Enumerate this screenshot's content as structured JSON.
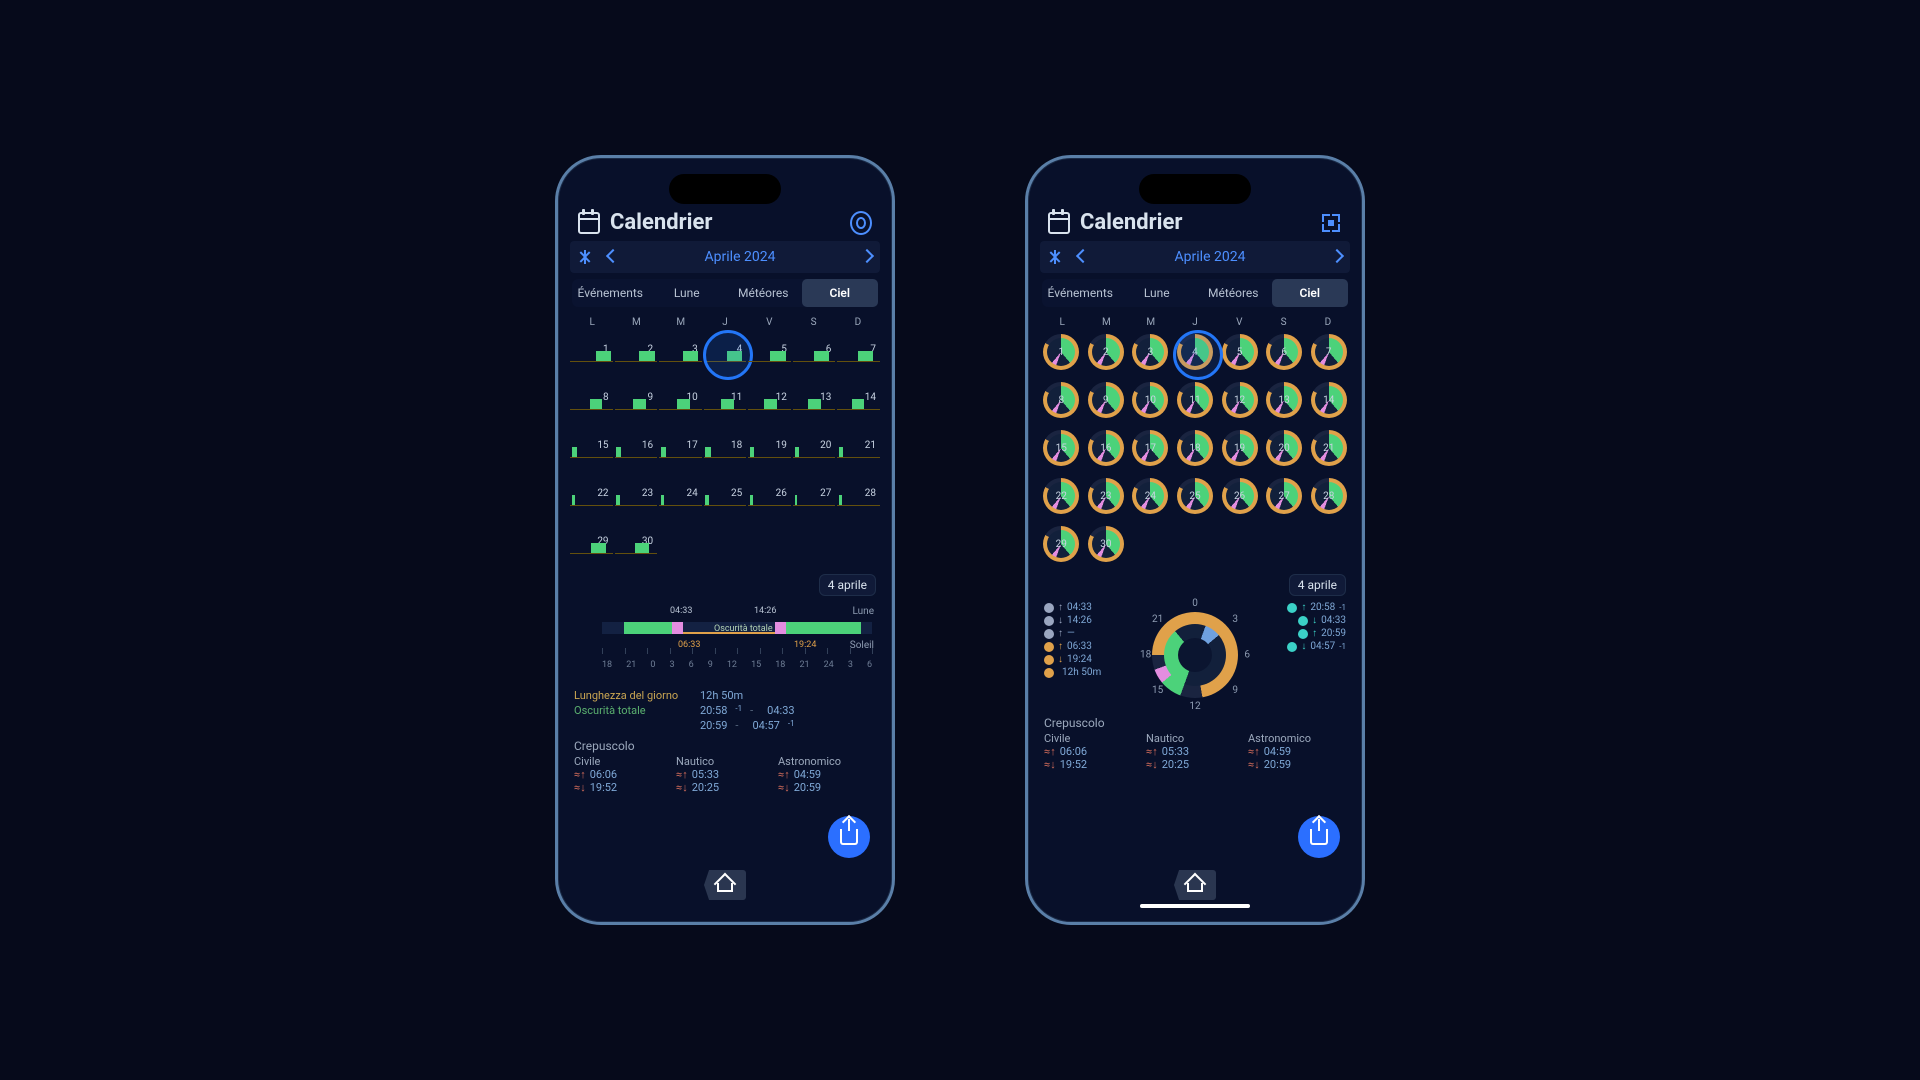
{
  "colors": {
    "bg": "#060a1b",
    "phone_border": "#5a7fa8",
    "accent_blue": "#2b6fff",
    "orange": "#e0a14a",
    "green": "#4cd27a",
    "pink": "#e38de0",
    "cyan": "#3bd1c7",
    "selected_ring": "#2376f7",
    "text": "#d9e3ee",
    "muted": "#7a8aa0"
  },
  "header": {
    "title": "Calendrier"
  },
  "month": {
    "label": "Aprile 2024"
  },
  "tabs": [
    "Événements",
    "Lune",
    "Météores",
    "Ciel"
  ],
  "tabs_active_index": 3,
  "weekdays": [
    "L",
    "M",
    "M",
    "J",
    "V",
    "S",
    "D"
  ],
  "days": [
    1,
    2,
    3,
    4,
    5,
    6,
    7,
    8,
    9,
    10,
    11,
    12,
    13,
    14,
    15,
    16,
    17,
    18,
    19,
    20,
    21,
    22,
    23,
    24,
    25,
    26,
    27,
    28,
    29,
    30
  ],
  "selected_day": 4,
  "timeline_cells": {
    "comment": "green bar left% and width% shrinking through the month",
    "bars": [
      [
        60,
        36
      ],
      [
        58,
        36
      ],
      [
        56,
        36
      ],
      [
        54,
        36
      ],
      [
        52,
        36
      ],
      [
        50,
        36
      ],
      [
        48,
        36
      ],
      [
        46,
        30
      ],
      [
        44,
        30
      ],
      [
        42,
        30
      ],
      [
        40,
        30
      ],
      [
        38,
        30
      ],
      [
        36,
        30
      ],
      [
        34,
        28
      ],
      [
        4,
        12
      ],
      [
        4,
        12
      ],
      [
        4,
        12
      ],
      [
        4,
        12
      ],
      [
        4,
        10
      ],
      [
        4,
        10
      ],
      [
        4,
        10
      ],
      [
        4,
        8
      ],
      [
        4,
        8
      ],
      [
        4,
        8
      ],
      [
        4,
        8
      ],
      [
        4,
        6
      ],
      [
        4,
        6
      ],
      [
        4,
        6
      ],
      [
        50,
        34
      ],
      [
        48,
        34
      ]
    ],
    "bar_color": "#4cd27a",
    "baseline_color": "#63500d"
  },
  "detail_date": "4 aprile",
  "left_detail": {
    "moon_label": "Lune",
    "sun_label": "Soleil",
    "moon_rise": "04:33",
    "moon_set": "14:26",
    "sun_rise": "06:33",
    "sun_set": "19:24",
    "darkness_tag": "Oscurità totale",
    "axis_ticks": [
      "18",
      "21",
      "0",
      "3",
      "6",
      "9",
      "12",
      "15",
      "18",
      "21",
      "24",
      "3",
      "6"
    ],
    "day_length_label": "Lunghezza del giorno",
    "day_length_value": "12h 50m",
    "total_darkness_label": "Oscurità totale",
    "darkness_1a": "20:58",
    "darkness_1b": "04:33",
    "darkness_2a": "20:59",
    "darkness_2b": "04:57",
    "darkness_sup": "-1"
  },
  "right_detail": {
    "left_col": [
      {
        "icon": "moon",
        "arrow": "up",
        "v": "04:33",
        "color": "#9aa6c0"
      },
      {
        "icon": "moon",
        "arrow": "down",
        "v": "14:26",
        "color": "#9aa6c0"
      },
      {
        "icon": "moon",
        "arrow": "up",
        "v": "—",
        "color": "#9aa6c0"
      },
      {
        "icon": "sun",
        "arrow": "up",
        "v": "06:33",
        "color": "#e0a14a"
      },
      {
        "icon": "sun",
        "arrow": "down",
        "v": "19:24",
        "color": "#e0a14a"
      },
      {
        "icon": "sun",
        "arrow": "",
        "v": "12h 50m",
        "color": "#e0a14a"
      }
    ],
    "right_col": [
      {
        "icon": "eye",
        "arrow": "up",
        "v": "20:58",
        "sup": "-1",
        "color": "#3bd1c7"
      },
      {
        "icon": "eye",
        "arrow": "down",
        "v": "04:33",
        "color": "#3bd1c7"
      },
      {
        "icon": "eye",
        "arrow": "up",
        "v": "20:59",
        "color": "#3bd1c7"
      },
      {
        "icon": "eye",
        "arrow": "down",
        "v": "04:57",
        "sup": "-1",
        "color": "#3bd1c7"
      }
    ],
    "clock_numbers": {
      "0": "0",
      "3": "3",
      "6": "6",
      "9": "9",
      "12": "12",
      "15": "15",
      "18": "18",
      "21": "21"
    }
  },
  "twilight": {
    "title": "Crepuscolo",
    "cols": [
      {
        "label": "Civile",
        "up": "06:06",
        "down": "19:52"
      },
      {
        "label": "Nautico",
        "up": "05:33",
        "down": "20:25"
      },
      {
        "label": "Astronomico",
        "up": "04:59",
        "down": "20:59"
      }
    ]
  }
}
